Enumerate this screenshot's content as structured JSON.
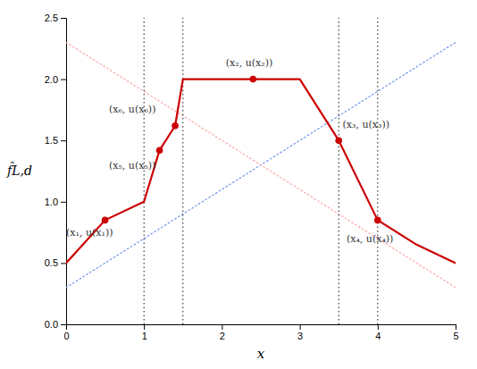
{
  "chart_data": {
    "type": "line",
    "xlabel": "x",
    "ylabel": "f̂L,d",
    "xlim": [
      0,
      5
    ],
    "ylim": [
      0,
      2.5
    ],
    "xticks": [
      0,
      1,
      2,
      3,
      4,
      5
    ],
    "yticks": [
      {
        "value": 0,
        "label": "0.0"
      },
      0.5,
      {
        "value": 1.0,
        "label": "1.0"
      },
      1.5,
      {
        "value": 2.0,
        "label": "2.0"
      },
      2.5
    ],
    "grid": false,
    "series": [
      {
        "type": "line",
        "x": [
          0.0,
          5.0
        ],
        "values": [
          0.3,
          2.3
        ],
        "color": "#7799ee",
        "line_style": "dotted"
      },
      {
        "type": "line",
        "x": [
          0.0,
          5.0
        ],
        "values": [
          2.3,
          0.3
        ],
        "color": "#ffaaaa",
        "line_style": "dotted"
      },
      {
        "type": "vline",
        "x": [
          1.0,
          1.5,
          3.5,
          4.0
        ],
        "color": "#111111",
        "line_style": "dotted"
      },
      {
        "type": "line",
        "x": [
          0,
          0.5,
          1.0,
          1.2,
          1.4,
          1.5,
          3.0,
          3.5,
          4.0,
          4.5,
          5.0
        ],
        "values": [
          0.5,
          0.85,
          1.0,
          1.42,
          1.62,
          2.0,
          2.0,
          1.5,
          0.85,
          0.65,
          0.5
        ],
        "color": "#cc0000",
        "line_style": "solid"
      },
      {
        "type": "scatter",
        "x": [
          0.5,
          1.2,
          1.4,
          2.4,
          3.5,
          4.0
        ],
        "values": [
          0.85,
          1.42,
          1.62,
          2.0,
          1.5,
          0.85
        ],
        "color": "#cc0000",
        "marker": "circle"
      }
    ],
    "annotations": [
      {
        "text": "(x₁, u(x₁))",
        "x": 0.0,
        "y": 0.78
      },
      {
        "text": "(x₅, u(x₅))",
        "x": 0.55,
        "y": 1.33
      },
      {
        "text": "(x₆, u(x₆))",
        "x": 0.55,
        "y": 1.73
      },
      {
        "text": "(x₂, u(x₂))",
        "x": 2.05,
        "y": 2.11
      },
      {
        "text": "(x₃, u(x₃))",
        "x": 3.55,
        "y": 1.6
      },
      {
        "text": "(x₄, u(x₄))",
        "x": 3.6,
        "y": 0.73
      }
    ]
  }
}
